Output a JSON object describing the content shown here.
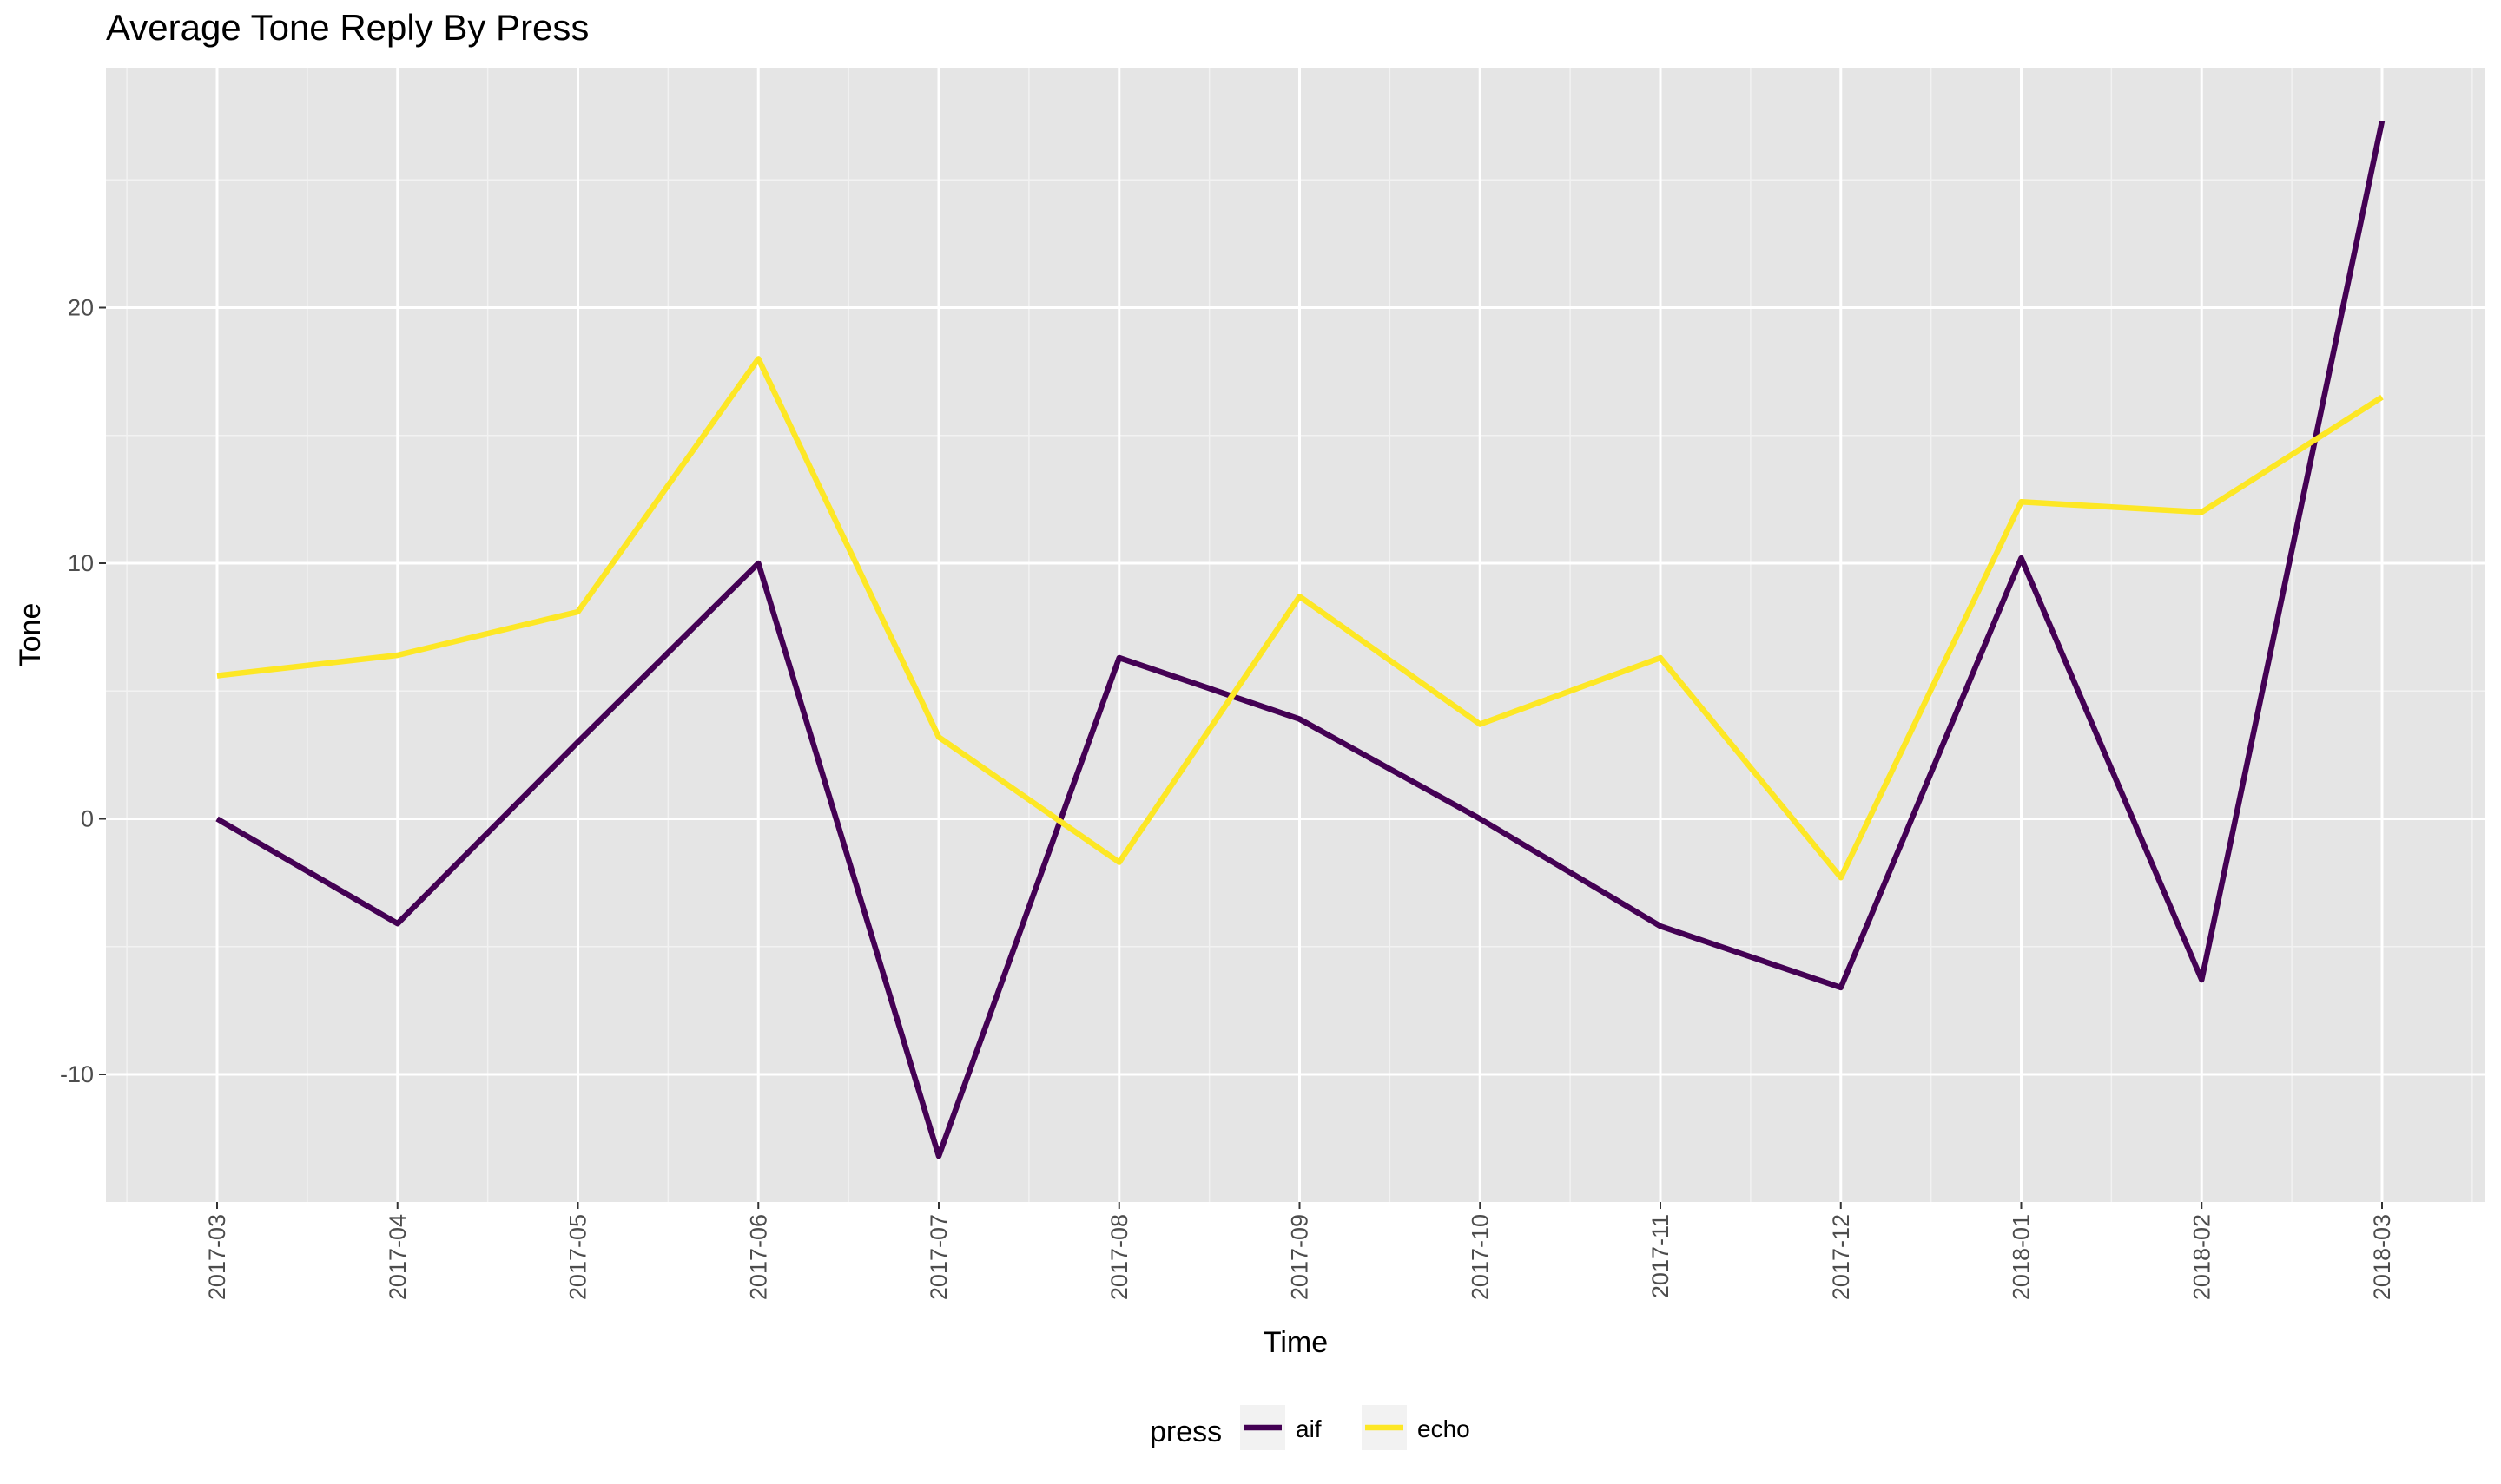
{
  "chart_data": {
    "type": "line",
    "title": "Average Tone Reply By Press",
    "xlabel": "Time",
    "ylabel": "Tone",
    "categories": [
      "2017-03",
      "2017-04",
      "2017-05",
      "2017-06",
      "2017-07",
      "2017-08",
      "2017-09",
      "2017-10",
      "2017-11",
      "2017-12",
      "2018-01",
      "2018-02",
      "2018-03"
    ],
    "ylim": [
      -15,
      30
    ],
    "yticks": [
      -10,
      0,
      10,
      20
    ],
    "grid": true,
    "legend": {
      "title": "press",
      "position": "bottom"
    },
    "series": [
      {
        "name": "aif",
        "color": "#440154",
        "values": [
          0.0,
          -4.1,
          3.0,
          10.0,
          -13.2,
          6.3,
          3.9,
          0.0,
          -4.2,
          -6.6,
          10.2,
          -6.3,
          27.3
        ]
      },
      {
        "name": "echo",
        "color": "#FDE725",
        "values": [
          5.6,
          6.4,
          8.1,
          18.0,
          3.2,
          -1.7,
          8.7,
          3.7,
          6.3,
          -2.3,
          12.4,
          12.0,
          16.5
        ]
      }
    ]
  }
}
